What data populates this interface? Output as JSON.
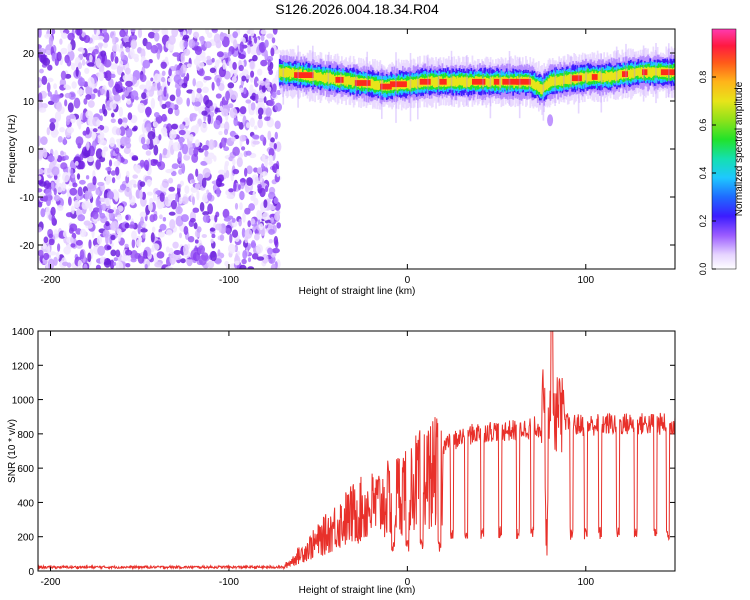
{
  "title": "S126.2026.004.18.34.R04",
  "colorbar": {
    "label": "Normalized spectral amplitude",
    "ticks": [
      0.0,
      0.2,
      0.4,
      0.6,
      0.8
    ],
    "tick_labels": [
      "0.0",
      "0.2",
      "0.4",
      "0.6",
      "0.8"
    ]
  },
  "chart_data": [
    {
      "type": "heatmap",
      "title": "S126.2026.004.18.34.R04",
      "xlabel": "Height of straight line (km)",
      "ylabel": "Frequency (Hz)",
      "xlim": [
        -207,
        150
      ],
      "ylim": [
        -25,
        25
      ],
      "xticks": [
        -200,
        -100,
        0,
        100
      ],
      "xtick_labels": [
        "-200",
        "-100",
        "0",
        "100"
      ],
      "yticks": [
        20,
        10,
        0,
        -10,
        -20
      ],
      "ytick_labels": [
        "20",
        "10",
        "0",
        "-10",
        "-20"
      ],
      "noise_region_x": [
        -207,
        -72
      ],
      "ridge_points": {
        "x": [
          -72,
          -60,
          -50,
          -40,
          -30,
          -20,
          -12,
          -5,
          0,
          10,
          20,
          30,
          40,
          50,
          60,
          68,
          75,
          80,
          90,
          100,
          110,
          120,
          130,
          140,
          150
        ],
        "y": [
          16,
          15.5,
          15,
          14.5,
          14,
          13.5,
          13,
          13.5,
          13.5,
          14,
          14,
          14,
          14,
          14,
          14,
          14,
          12.5,
          14,
          14.5,
          15,
          15,
          15.5,
          16,
          16,
          16
        ]
      },
      "value_range": [
        0.0,
        1.0
      ]
    },
    {
      "type": "line",
      "xlabel": "Height of straight line (km)",
      "ylabel": "SNR (10 * v/v)",
      "xlim": [
        -207,
        150
      ],
      "ylim": [
        0,
        1400
      ],
      "xticks": [
        -200,
        -100,
        0,
        100
      ],
      "xtick_labels": [
        "-200",
        "-100",
        "0",
        "100"
      ],
      "yticks": [
        0,
        200,
        400,
        600,
        800,
        1000,
        1200,
        1400
      ],
      "ytick_labels": [
        "0",
        "200",
        "400",
        "600",
        "800",
        "1000",
        "1200",
        "1400"
      ],
      "series": [
        {
          "name": "SNR",
          "color": "#e8302a",
          "envelope": {
            "x": [
              -207,
              -70,
              -60,
              -50,
              -40,
              -30,
              -20,
              -10,
              0,
              10,
              20,
              30,
              40,
              50,
              60,
              70,
              80,
              90,
              100,
              110,
              120,
              130,
              140,
              150
            ],
            "y": [
              20,
              20,
              120,
              220,
              330,
              420,
              470,
              520,
              620,
              680,
              750,
              800,
              830,
              840,
              840,
              860,
              870,
              880,
              870,
              880,
              880,
              880,
              880,
              880
            ]
          },
          "peak": {
            "x": 81,
            "y": 1400
          },
          "dropouts_x": [
            -8,
            0,
            8,
            18,
            25,
            33,
            42,
            52,
            62,
            70,
            78,
            92,
            100,
            108,
            118,
            128,
            139,
            146
          ]
        }
      ]
    }
  ]
}
